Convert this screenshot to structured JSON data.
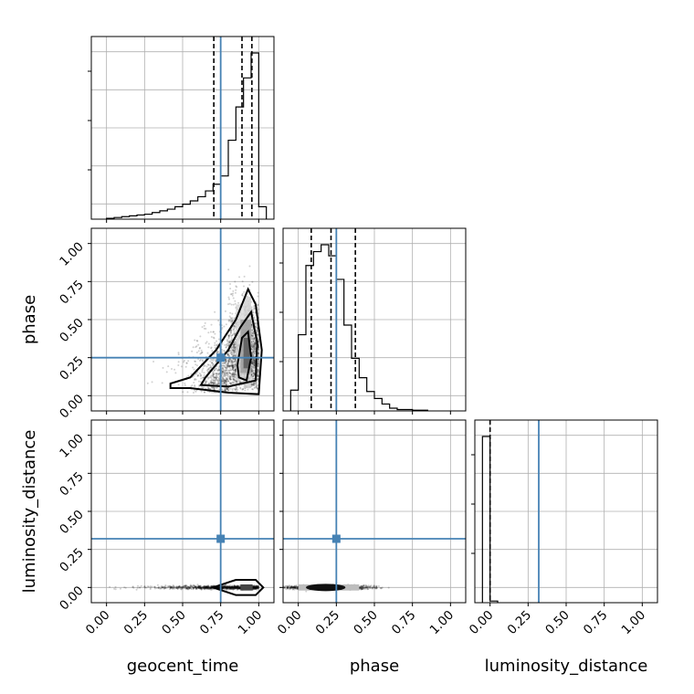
{
  "chart_data": {
    "type": "corner",
    "grid": true,
    "parameters": [
      "geocent_time",
      "phase",
      "luminosity_distance"
    ],
    "axis_range": [
      -0.1,
      1.1
    ],
    "ticks": [
      0.0,
      0.25,
      0.5,
      0.75,
      1.0
    ],
    "tick_labels": [
      "0.00",
      "0.25",
      "0.50",
      "0.75",
      "1.00"
    ],
    "truth_values": {
      "geocent_time": 0.75,
      "phase": 0.25,
      "luminosity_distance": 0.32
    },
    "truth_color": "#4682b4",
    "histograms": {
      "geocent_time": {
        "bin_edges": [
          0.0,
          0.05,
          0.1,
          0.15,
          0.2,
          0.25,
          0.3,
          0.35,
          0.4,
          0.45,
          0.5,
          0.55,
          0.6,
          0.65,
          0.7,
          0.75,
          0.8,
          0.85,
          0.9,
          0.95,
          1.0,
          1.05
        ],
        "counts": [
          1,
          2,
          3,
          4,
          5,
          6,
          8,
          10,
          12,
          15,
          18,
          22,
          27,
          34,
          42,
          52,
          95,
          135,
          170,
          200,
          15
        ],
        "quantile_lines": [
          0.705,
          0.89,
          0.955
        ]
      },
      "phase": {
        "bin_edges": [
          -0.05,
          0.0,
          0.05,
          0.1,
          0.15,
          0.2,
          0.25,
          0.3,
          0.35,
          0.4,
          0.45,
          0.5,
          0.55,
          0.6,
          0.65,
          0.7,
          0.75,
          0.8,
          0.85
        ],
        "counts": [
          15,
          55,
          105,
          115,
          120,
          112,
          95,
          62,
          38,
          24,
          14,
          9,
          5,
          2,
          1,
          1,
          0.5,
          0.5
        ],
        "quantile_lines": [
          0.085,
          0.215,
          0.375
        ]
      },
      "luminosity_distance": {
        "bin_edges": [
          -0.05,
          0.0,
          0.05
        ],
        "counts": [
          200,
          2
        ],
        "quantile_lines": [
          0.0
        ]
      }
    },
    "panels": [
      {
        "x": "geocent_time",
        "y": "phase"
      },
      {
        "x": "geocent_time",
        "y": "luminosity_distance"
      },
      {
        "x": "phase",
        "y": "luminosity_distance"
      }
    ]
  }
}
